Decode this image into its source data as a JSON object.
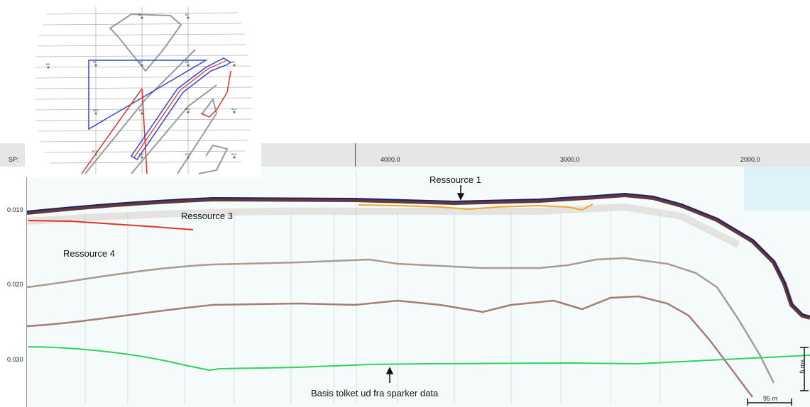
{
  "header": {
    "sp_label": "SP:",
    "ticks": [
      "4000.0",
      "3000.0",
      "2000.0"
    ]
  },
  "y_axis": {
    "ticks": [
      "0.010",
      "0.020",
      "0.030"
    ]
  },
  "annotations": {
    "ressource_1": "Ressource 1",
    "ressource_3": "Ressource 3",
    "ressource_4": "Ressource 4",
    "basis": "Basis tolket ud fra sparker data"
  },
  "scale_bars": {
    "horizontal": "95 m",
    "vertical": "6 ms"
  },
  "map": {
    "stations": [
      "B1",
      "B2",
      "B5",
      "B6",
      "B7",
      "B8",
      "B9",
      "B10",
      "B11",
      "B12",
      "B13",
      "B14",
      "B15",
      "B16",
      "B17"
    ]
  },
  "colors": {
    "ressource_1_line": "#f2a72c",
    "ressource_3_4_line": "#e0332a",
    "basis_line": "#2fd25b",
    "seafloor": "#1a1a7a",
    "map_polygon": "#3347d4"
  }
}
